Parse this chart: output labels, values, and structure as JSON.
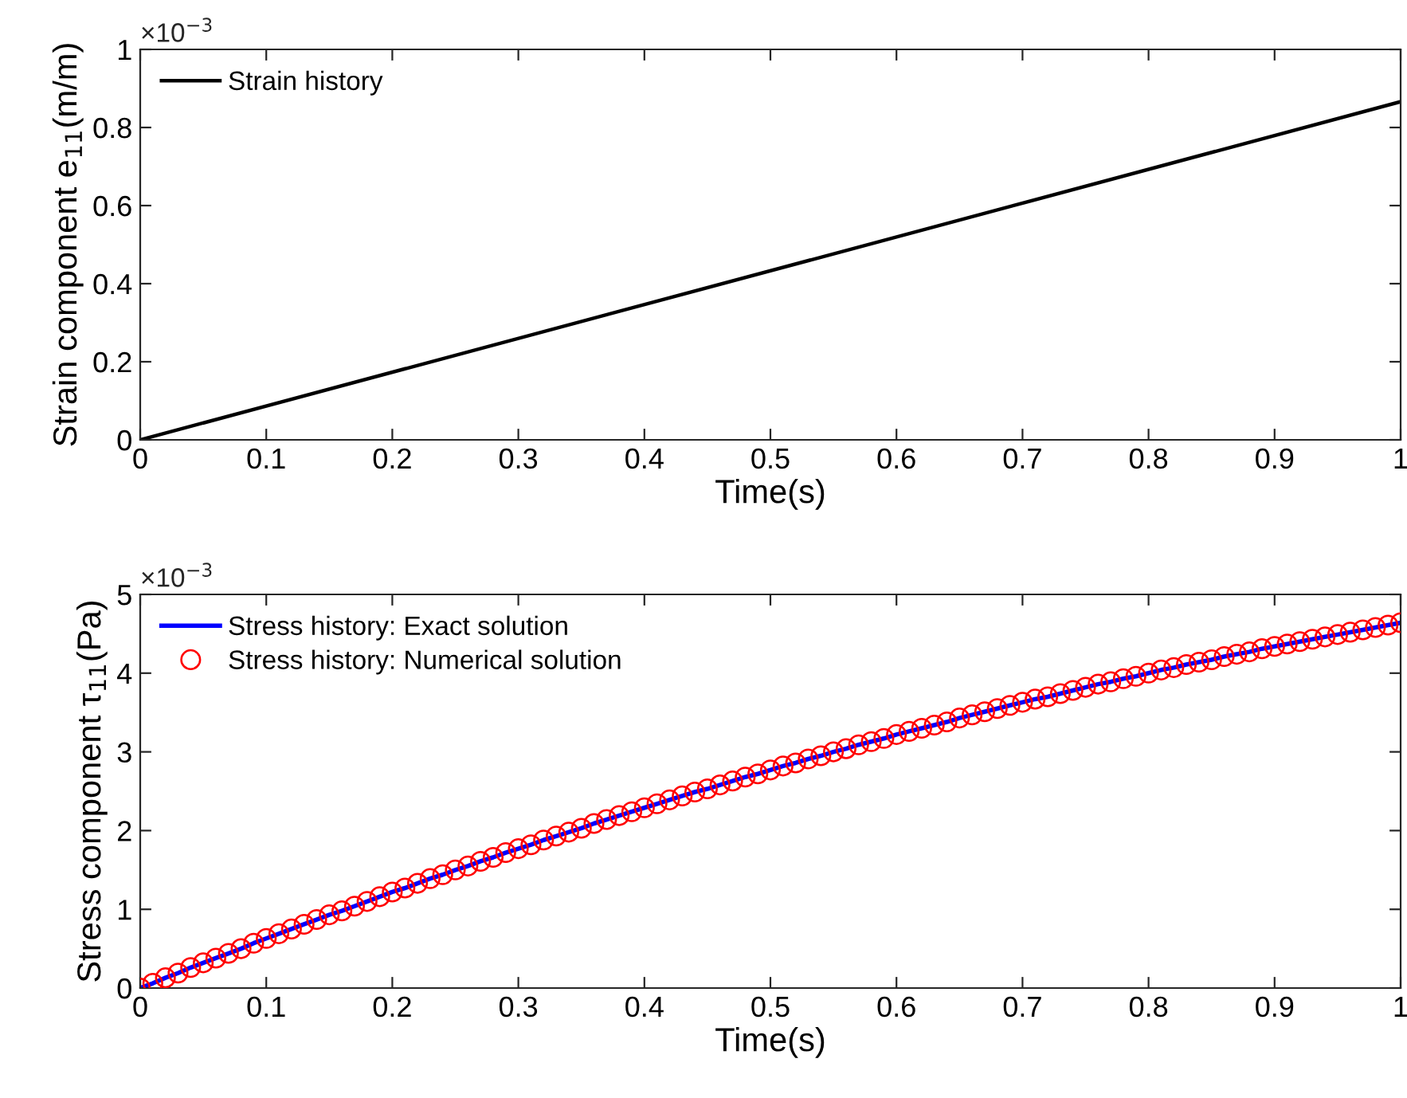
{
  "chart_data": [
    {
      "type": "line",
      "xlabel": "Time(s)",
      "ylabel": "Strain component e$_{11}$(m/m)",
      "annotations": [
        "×10$^{−3}$"
      ],
      "xlim": [
        0,
        1
      ],
      "ylim": [
        0,
        1
      ],
      "xticks": [
        0,
        0.1,
        0.2,
        0.3,
        0.4,
        0.5,
        0.6,
        0.7,
        0.8,
        0.9,
        1
      ],
      "yticks": [
        0,
        0.2,
        0.4,
        0.6,
        0.8,
        1
      ],
      "grid": false,
      "legend": "top left",
      "series": [
        {
          "name": "Strain history",
          "color": "#000000",
          "marker": "none",
          "x": [
            0,
            1
          ],
          "values": [
            0,
            0.866
          ]
        }
      ]
    },
    {
      "type": "line",
      "xlabel": "Time(s)",
      "ylabel": "Stress component τ$_{11}$(Pa)",
      "annotations": [
        "×10$^{−3}$"
      ],
      "xlim": [
        0,
        1
      ],
      "ylim": [
        0,
        5
      ],
      "xticks": [
        0,
        0.1,
        0.2,
        0.3,
        0.4,
        0.5,
        0.6,
        0.7,
        0.8,
        0.9,
        1
      ],
      "yticks": [
        0,
        1,
        2,
        3,
        4,
        5
      ],
      "grid": false,
      "legend": "top left",
      "x": [
        0,
        0.01,
        0.02,
        0.03,
        0.04,
        0.05,
        0.06,
        0.07,
        0.08,
        0.09,
        0.1,
        0.11,
        0.12,
        0.13,
        0.14,
        0.15,
        0.16,
        0.17,
        0.18,
        0.19,
        0.2,
        0.21,
        0.22,
        0.23,
        0.24,
        0.25,
        0.26,
        0.27,
        0.28,
        0.29,
        0.3,
        0.31,
        0.32,
        0.33,
        0.34,
        0.35,
        0.36,
        0.37,
        0.38,
        0.39,
        0.4,
        0.41,
        0.42,
        0.43,
        0.44,
        0.45,
        0.46,
        0.47,
        0.48,
        0.49,
        0.5,
        0.51,
        0.52,
        0.53,
        0.54,
        0.55,
        0.56,
        0.57,
        0.58,
        0.59,
        0.6,
        0.61,
        0.62,
        0.63,
        0.64,
        0.65,
        0.66,
        0.67,
        0.68,
        0.69,
        0.7,
        0.71,
        0.72,
        0.73,
        0.74,
        0.75,
        0.76,
        0.77,
        0.78,
        0.79,
        0.8,
        0.81,
        0.82,
        0.83,
        0.84,
        0.85,
        0.86,
        0.87,
        0.88,
        0.89,
        0.9,
        0.91,
        0.92,
        0.93,
        0.94,
        0.95,
        0.96,
        0.97,
        0.98,
        0.99,
        1
      ],
      "series": [
        {
          "name": "Stress history: Exact solution",
          "color": "#0000ff",
          "marker": "none",
          "line_style": "solid",
          "values": [
            0,
            0.06,
            0.13,
            0.19,
            0.26,
            0.32,
            0.38,
            0.44,
            0.5,
            0.57,
            0.63,
            0.69,
            0.75,
            0.81,
            0.87,
            0.93,
            0.98,
            1.04,
            1.1,
            1.16,
            1.22,
            1.27,
            1.33,
            1.39,
            1.44,
            1.5,
            1.55,
            1.61,
            1.66,
            1.72,
            1.77,
            1.82,
            1.88,
            1.93,
            1.98,
            2.03,
            2.09,
            2.14,
            2.19,
            2.24,
            2.29,
            2.34,
            2.39,
            2.44,
            2.49,
            2.53,
            2.58,
            2.63,
            2.68,
            2.72,
            2.77,
            2.82,
            2.86,
            2.91,
            2.95,
            3,
            3.04,
            3.09,
            3.13,
            3.17,
            3.22,
            3.26,
            3.3,
            3.34,
            3.38,
            3.43,
            3.47,
            3.51,
            3.55,
            3.59,
            3.63,
            3.67,
            3.7,
            3.74,
            3.78,
            3.82,
            3.86,
            3.89,
            3.93,
            3.96,
            4,
            4.04,
            4.07,
            4.11,
            4.14,
            4.17,
            4.21,
            4.24,
            4.27,
            4.31,
            4.34,
            4.37,
            4.4,
            4.43,
            4.46,
            4.49,
            4.52,
            4.55,
            4.58,
            4.61,
            4.64
          ]
        },
        {
          "name": "Stress history: Numerical solution",
          "type": "scatter",
          "color": "#ff0000",
          "marker": "circle",
          "values": [
            0,
            0.06,
            0.13,
            0.19,
            0.26,
            0.32,
            0.38,
            0.44,
            0.5,
            0.57,
            0.63,
            0.69,
            0.75,
            0.81,
            0.87,
            0.93,
            0.98,
            1.04,
            1.1,
            1.16,
            1.22,
            1.27,
            1.33,
            1.39,
            1.44,
            1.5,
            1.55,
            1.61,
            1.66,
            1.72,
            1.77,
            1.82,
            1.88,
            1.93,
            1.98,
            2.03,
            2.09,
            2.14,
            2.19,
            2.24,
            2.29,
            2.34,
            2.39,
            2.44,
            2.49,
            2.53,
            2.58,
            2.63,
            2.68,
            2.72,
            2.77,
            2.82,
            2.86,
            2.91,
            2.95,
            3,
            3.04,
            3.09,
            3.13,
            3.17,
            3.22,
            3.26,
            3.3,
            3.34,
            3.38,
            3.43,
            3.47,
            3.51,
            3.55,
            3.59,
            3.63,
            3.67,
            3.7,
            3.74,
            3.78,
            3.82,
            3.86,
            3.89,
            3.93,
            3.96,
            4,
            4.04,
            4.07,
            4.11,
            4.14,
            4.17,
            4.21,
            4.24,
            4.27,
            4.31,
            4.34,
            4.37,
            4.4,
            4.43,
            4.46,
            4.49,
            4.52,
            4.55,
            4.58,
            4.61,
            4.64
          ]
        }
      ]
    }
  ]
}
